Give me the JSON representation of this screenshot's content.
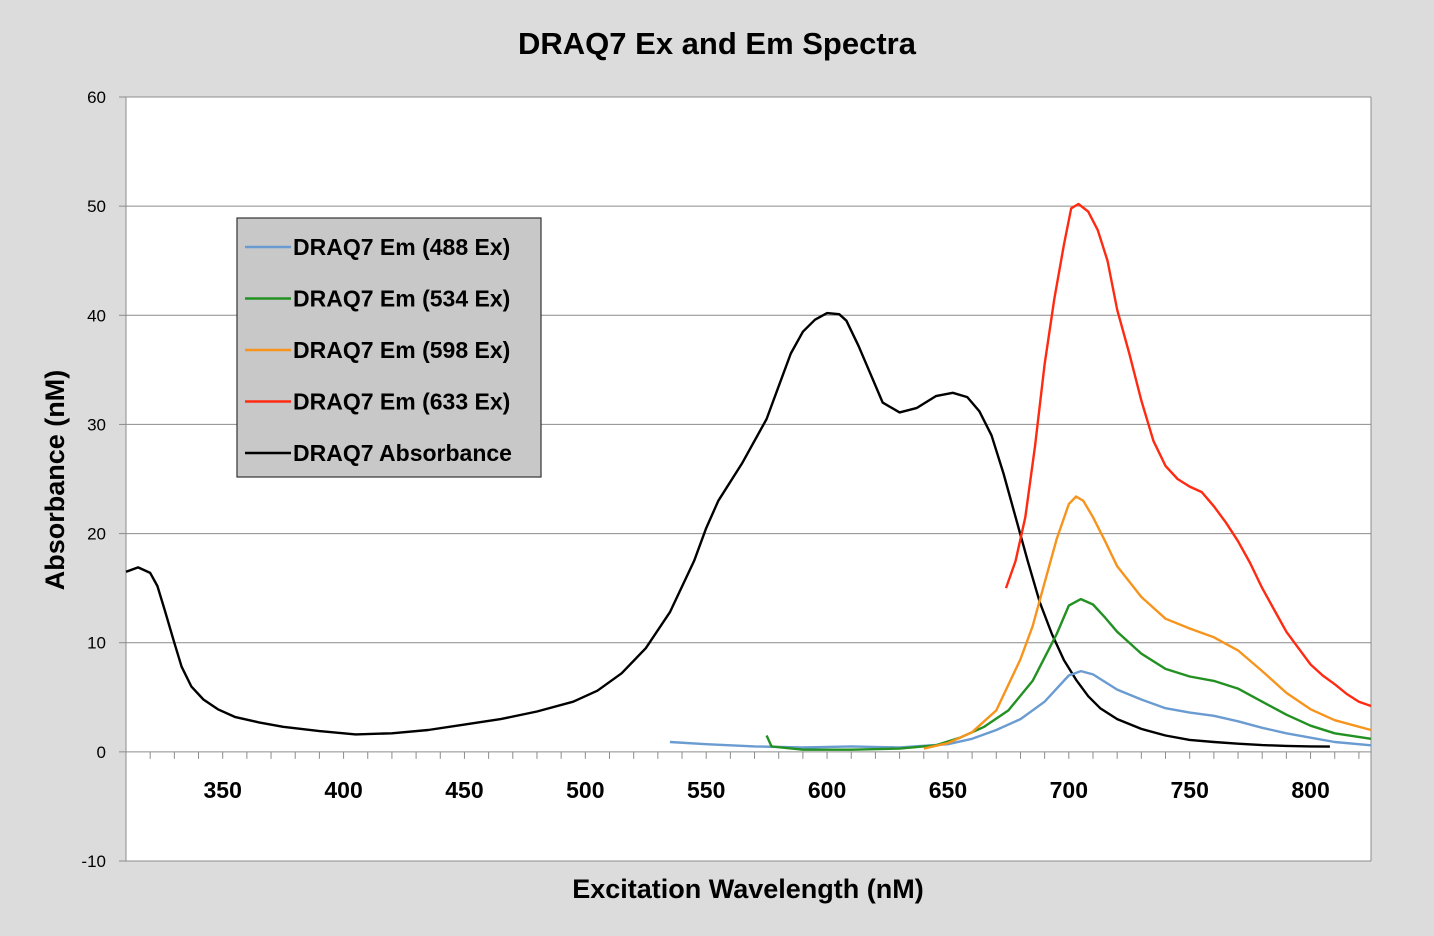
{
  "chart_data": {
    "type": "line",
    "title": "DRAQ7 Ex and Em Spectra",
    "xlabel": "Excitation Wavelength (nM)",
    "ylabel": "Absorbance (nM)",
    "xlim": [
      310,
      825
    ],
    "ylim": [
      -10,
      60
    ],
    "xticks": [
      "350",
      "400",
      "450",
      "500",
      "550",
      "600",
      "650",
      "700",
      "750",
      "800"
    ],
    "yticks": [
      "-10",
      "0",
      "10",
      "20",
      "30",
      "40",
      "50",
      "60"
    ],
    "grid": true,
    "legend_position": "upper-left",
    "series": [
      {
        "name": "DRAQ7 Em (488 Ex)",
        "color": "#6a9bd1",
        "points": [
          [
            535,
            0.9
          ],
          [
            550,
            0.7
          ],
          [
            570,
            0.5
          ],
          [
            590,
            0.4
          ],
          [
            610,
            0.5
          ],
          [
            630,
            0.4
          ],
          [
            650,
            0.7
          ],
          [
            660,
            1.2
          ],
          [
            670,
            2.0
          ],
          [
            680,
            3.0
          ],
          [
            690,
            4.6
          ],
          [
            695,
            5.8
          ],
          [
            700,
            7.0
          ],
          [
            705,
            7.4
          ],
          [
            710,
            7.1
          ],
          [
            715,
            6.4
          ],
          [
            720,
            5.7
          ],
          [
            730,
            4.8
          ],
          [
            740,
            4.0
          ],
          [
            750,
            3.6
          ],
          [
            760,
            3.3
          ],
          [
            770,
            2.8
          ],
          [
            780,
            2.2
          ],
          [
            790,
            1.7
          ],
          [
            800,
            1.3
          ],
          [
            810,
            0.9
          ],
          [
            825,
            0.6
          ]
        ]
      },
      {
        "name": "DRAQ7 Em (534 Ex)",
        "color": "#229122",
        "points": [
          [
            575,
            1.5
          ],
          [
            577,
            0.5
          ],
          [
            590,
            0.2
          ],
          [
            610,
            0.2
          ],
          [
            630,
            0.3
          ],
          [
            645,
            0.6
          ],
          [
            655,
            1.3
          ],
          [
            665,
            2.3
          ],
          [
            675,
            3.8
          ],
          [
            685,
            6.5
          ],
          [
            695,
            10.8
          ],
          [
            700,
            13.4
          ],
          [
            705,
            14.0
          ],
          [
            710,
            13.5
          ],
          [
            715,
            12.3
          ],
          [
            720,
            11.0
          ],
          [
            730,
            9.0
          ],
          [
            740,
            7.6
          ],
          [
            750,
            6.9
          ],
          [
            760,
            6.5
          ],
          [
            770,
            5.8
          ],
          [
            780,
            4.6
          ],
          [
            790,
            3.4
          ],
          [
            800,
            2.4
          ],
          [
            810,
            1.7
          ],
          [
            825,
            1.2
          ]
        ]
      },
      {
        "name": "DRAQ7 Em (598 Ex)",
        "color": "#f7941d",
        "points": [
          [
            640,
            0.3
          ],
          [
            650,
            0.8
          ],
          [
            660,
            1.8
          ],
          [
            670,
            3.8
          ],
          [
            680,
            8.5
          ],
          [
            685,
            11.5
          ],
          [
            690,
            15.5
          ],
          [
            695,
            19.5
          ],
          [
            700,
            22.7
          ],
          [
            703,
            23.4
          ],
          [
            706,
            23.0
          ],
          [
            710,
            21.5
          ],
          [
            715,
            19.3
          ],
          [
            720,
            17.0
          ],
          [
            730,
            14.2
          ],
          [
            740,
            12.2
          ],
          [
            750,
            11.3
          ],
          [
            760,
            10.5
          ],
          [
            770,
            9.3
          ],
          [
            780,
            7.4
          ],
          [
            790,
            5.4
          ],
          [
            800,
            3.9
          ],
          [
            810,
            2.9
          ],
          [
            825,
            2.0
          ]
        ]
      },
      {
        "name": "DRAQ7 Em (633 Ex)",
        "color": "#ff2a12",
        "points": [
          [
            674,
            15.0
          ],
          [
            678,
            17.5
          ],
          [
            682,
            21.5
          ],
          [
            686,
            28.0
          ],
          [
            690,
            35.5
          ],
          [
            694,
            41.5
          ],
          [
            698,
            46.5
          ],
          [
            701,
            49.8
          ],
          [
            704,
            50.2
          ],
          [
            708,
            49.5
          ],
          [
            712,
            47.8
          ],
          [
            716,
            45.0
          ],
          [
            720,
            40.5
          ],
          [
            725,
            36.5
          ],
          [
            730,
            32.2
          ],
          [
            735,
            28.5
          ],
          [
            740,
            26.2
          ],
          [
            745,
            25.0
          ],
          [
            750,
            24.3
          ],
          [
            755,
            23.8
          ],
          [
            760,
            22.5
          ],
          [
            765,
            21.0
          ],
          [
            770,
            19.3
          ],
          [
            775,
            17.3
          ],
          [
            780,
            15.0
          ],
          [
            785,
            13.0
          ],
          [
            790,
            11.0
          ],
          [
            795,
            9.5
          ],
          [
            800,
            8.0
          ],
          [
            805,
            7.0
          ],
          [
            810,
            6.2
          ],
          [
            815,
            5.3
          ],
          [
            820,
            4.6
          ],
          [
            825,
            4.2
          ]
        ]
      },
      {
        "name": "DRAQ7 Absorbance",
        "color": "#000000",
        "points": [
          [
            310,
            16.5
          ],
          [
            315,
            16.9
          ],
          [
            320,
            16.4
          ],
          [
            323,
            15.2
          ],
          [
            326,
            13.0
          ],
          [
            330,
            10.0
          ],
          [
            333,
            7.8
          ],
          [
            337,
            6.0
          ],
          [
            342,
            4.8
          ],
          [
            348,
            3.9
          ],
          [
            355,
            3.2
          ],
          [
            365,
            2.7
          ],
          [
            375,
            2.3
          ],
          [
            390,
            1.9
          ],
          [
            405,
            1.6
          ],
          [
            420,
            1.7
          ],
          [
            435,
            2.0
          ],
          [
            450,
            2.5
          ],
          [
            465,
            3.0
          ],
          [
            480,
            3.7
          ],
          [
            495,
            4.6
          ],
          [
            505,
            5.6
          ],
          [
            515,
            7.2
          ],
          [
            525,
            9.5
          ],
          [
            535,
            12.8
          ],
          [
            545,
            17.5
          ],
          [
            550,
            20.5
          ],
          [
            555,
            23.0
          ],
          [
            565,
            26.5
          ],
          [
            575,
            30.5
          ],
          [
            580,
            33.5
          ],
          [
            585,
            36.5
          ],
          [
            590,
            38.5
          ],
          [
            595,
            39.6
          ],
          [
            600,
            40.2
          ],
          [
            605,
            40.1
          ],
          [
            608,
            39.5
          ],
          [
            613,
            37.2
          ],
          [
            618,
            34.6
          ],
          [
            623,
            32.0
          ],
          [
            630,
            31.1
          ],
          [
            637,
            31.5
          ],
          [
            645,
            32.6
          ],
          [
            652,
            32.9
          ],
          [
            658,
            32.5
          ],
          [
            663,
            31.2
          ],
          [
            668,
            29.0
          ],
          [
            673,
            25.5
          ],
          [
            678,
            21.5
          ],
          [
            683,
            17.5
          ],
          [
            688,
            13.7
          ],
          [
            693,
            10.8
          ],
          [
            698,
            8.4
          ],
          [
            703,
            6.6
          ],
          [
            708,
            5.1
          ],
          [
            713,
            4.0
          ],
          [
            720,
            3.0
          ],
          [
            730,
            2.1
          ],
          [
            740,
            1.5
          ],
          [
            750,
            1.1
          ],
          [
            760,
            0.9
          ],
          [
            770,
            0.75
          ],
          [
            780,
            0.62
          ],
          [
            790,
            0.55
          ],
          [
            800,
            0.5
          ],
          [
            808,
            0.48
          ]
        ]
      }
    ]
  }
}
